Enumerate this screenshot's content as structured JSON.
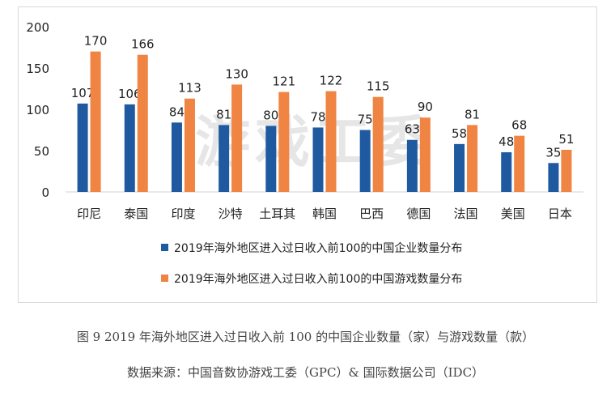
{
  "chart_data": {
    "type": "bar",
    "categories": [
      "印尼",
      "泰国",
      "印度",
      "沙特",
      "土耳其",
      "韩国",
      "巴西",
      "德国",
      "法国",
      "美国",
      "日本"
    ],
    "series": [
      {
        "name": "2019年海外地区进入过日收入前100的中国企业数量分布",
        "values": [
          107,
          106,
          84,
          81,
          80,
          78,
          75,
          63,
          58,
          48,
          35
        ],
        "color": "#1f5aa0"
      },
      {
        "name": "2019年海外地区进入过日收入前100的中国游戏数量分布",
        "values": [
          170,
          166,
          113,
          130,
          121,
          122,
          115,
          90,
          81,
          68,
          51
        ],
        "color": "#ef8443"
      }
    ],
    "ylim": [
      0,
      200
    ],
    "yticks": [
      0,
      50,
      100,
      150,
      200
    ],
    "grid": false,
    "legend_position": "bottom"
  },
  "watermark": "游戏工委",
  "caption": {
    "title": "图 9  2019 年海外地区进入过日收入前 100 的中国企业数量（家）与游戏数量（款）",
    "source": "数据来源：中国音数协游戏工委（GPC）& 国际数据公司（IDC）"
  }
}
